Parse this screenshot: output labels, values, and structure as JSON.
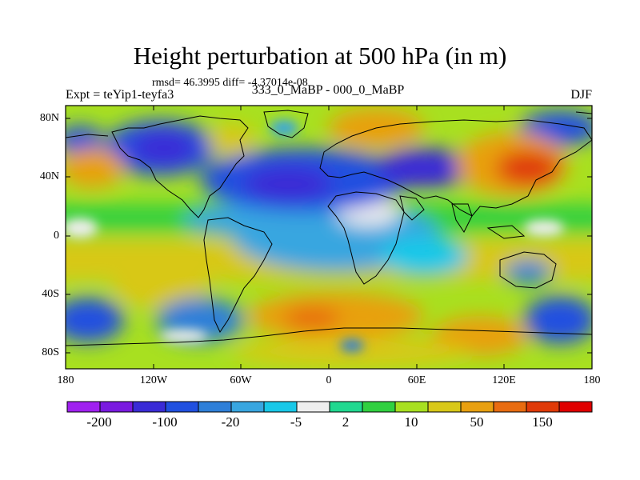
{
  "title": "Height perturbation at 500 hPa (in m)",
  "stats_line": "rmsd= 46.3995  diff= -4.37014e-08",
  "left_label": "Expt = teYip1-teyfa3",
  "center_label": "333_0_MaBP - 000_0_MaBP",
  "right_label": "DJF",
  "map": {
    "projection": "equirectangular",
    "lon_range": [
      -180,
      180
    ],
    "lat_range": [
      -90,
      90
    ],
    "y_ticks": [
      "80N",
      "40N",
      "0",
      "40S",
      "80S"
    ],
    "y_tick_values": [
      80,
      40,
      0,
      -40,
      -80
    ],
    "x_ticks": [
      "180",
      "120W",
      "60W",
      "0",
      "60E",
      "120E",
      "180"
    ],
    "x_tick_values": [
      -180,
      -120,
      -60,
      0,
      60,
      120,
      180
    ]
  },
  "colorbar": {
    "colors": [
      "#a020f0",
      "#7a1ae0",
      "#3a2bd6",
      "#2050e0",
      "#2e7fd8",
      "#38a6e0",
      "#18c8e8",
      "#eeeeee",
      "#20d890",
      "#30d040",
      "#a8e020",
      "#d8c818",
      "#e8a010",
      "#e86c10",
      "#e03a08",
      "#e00000"
    ],
    "labels": [
      "-200",
      "-100",
      "-20",
      "-5",
      "2",
      "10",
      "50",
      "150"
    ]
  }
}
